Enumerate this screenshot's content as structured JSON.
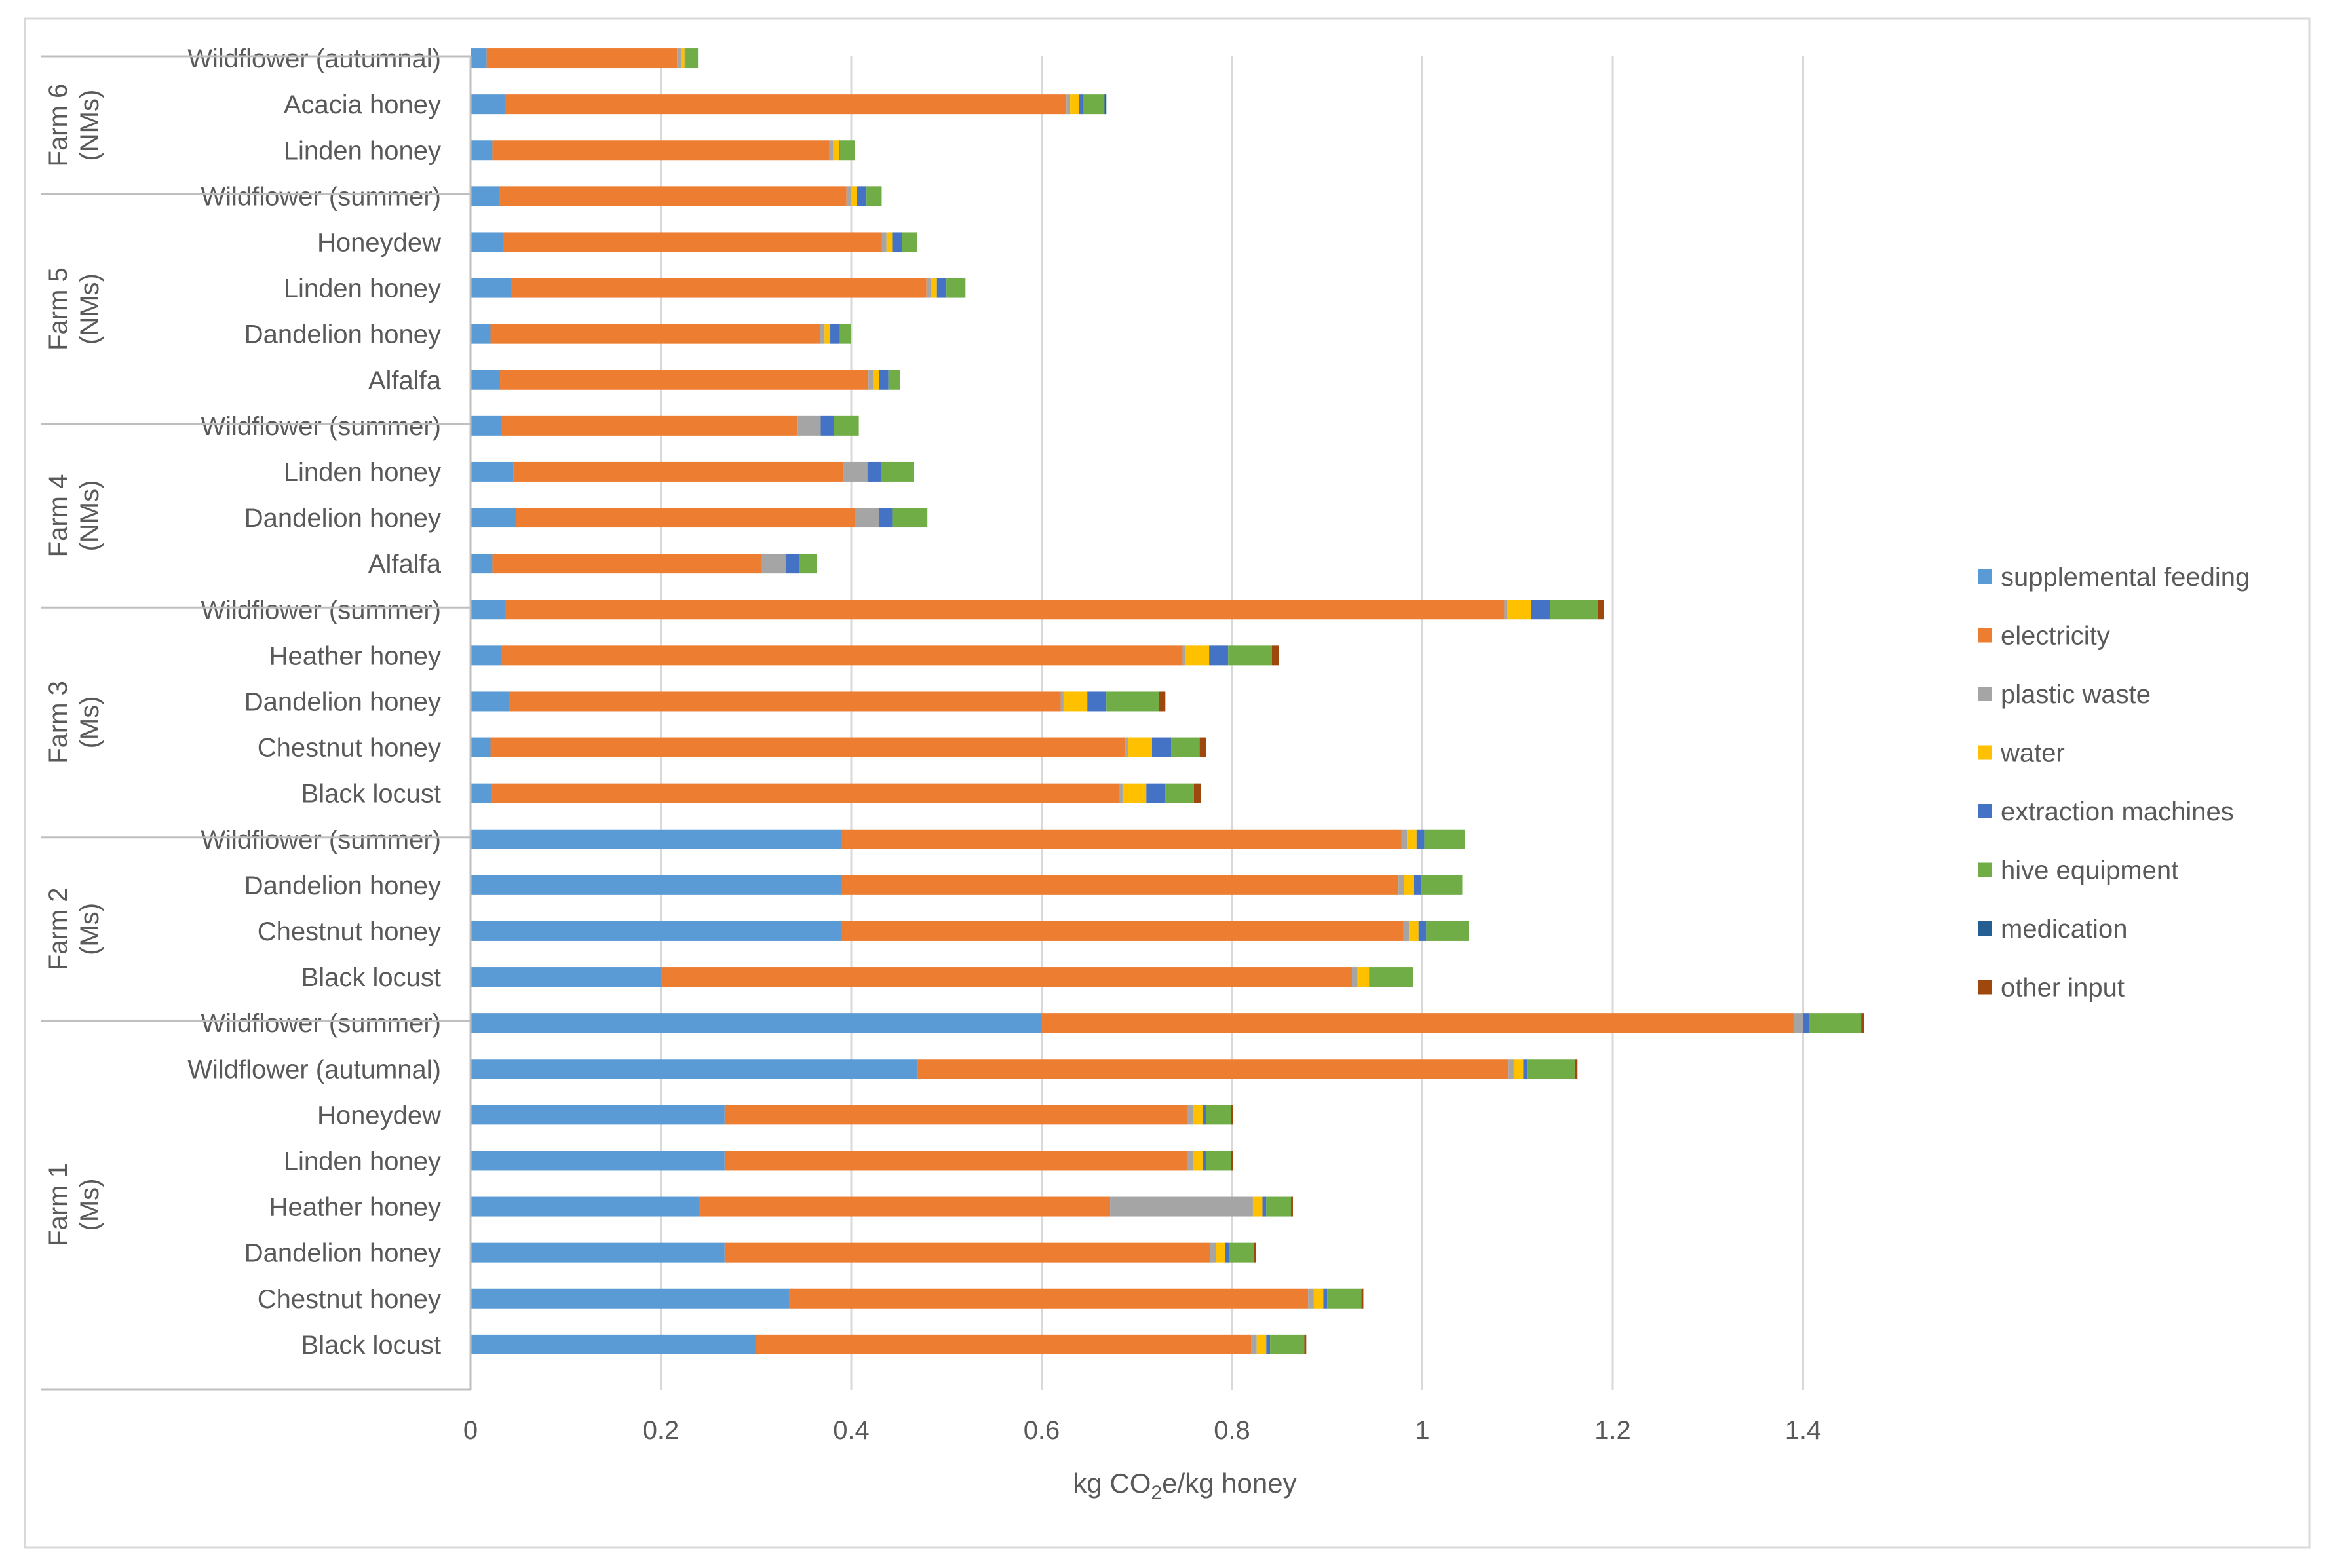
{
  "chart_data": {
    "type": "bar",
    "orientation": "horizontal",
    "stacked": true,
    "xlabel_parts": [
      "kg CO",
      "2",
      "e/kg honey"
    ],
    "xlim": [
      0,
      1.4
    ],
    "xticks": [
      "0",
      "0.2",
      "0.4",
      "0.6",
      "0.8",
      "1",
      "1.2",
      "1.4"
    ],
    "grid": "vertical",
    "legend_position": "right",
    "series": [
      {
        "name": "supplemental feeding",
        "color": "#5B9BD5"
      },
      {
        "name": "electricity",
        "color": "#ED7D31"
      },
      {
        "name": "plastic waste",
        "color": "#A5A5A5"
      },
      {
        "name": "water",
        "color": "#FFC000"
      },
      {
        "name": "extraction machines",
        "color": "#4472C4"
      },
      {
        "name": "hive equipment",
        "color": "#70AD47"
      },
      {
        "name": "medication",
        "color": "#255E91"
      },
      {
        "name": "other input",
        "color": "#9E480E"
      }
    ],
    "groups": [
      {
        "label": "Farm 6",
        "sublabel": "(NMs)",
        "rows": [
          {
            "category": "Wildflower (autumnal)",
            "values": [
              0.017,
              0.2,
              0.004,
              0.004,
              0.001,
              0.013,
              0.0,
              0.0
            ]
          },
          {
            "category": "Acacia honey",
            "values": [
              0.036,
              0.59,
              0.004,
              0.009,
              0.005,
              0.022,
              0.002,
              0.0
            ]
          },
          {
            "category": "Linden honey",
            "values": [
              0.023,
              0.354,
              0.004,
              0.006,
              0.001,
              0.016,
              0.0,
              0.0
            ]
          }
        ]
      },
      {
        "label": "Farm 5",
        "sublabel": "(NMs)",
        "rows": [
          {
            "category": "Wildflower (summer)",
            "values": [
              0.03,
              0.365,
              0.005,
              0.006,
              0.01,
              0.016,
              0.0,
              0.0
            ]
          },
          {
            "category": "Honeydew",
            "values": [
              0.034,
              0.398,
              0.005,
              0.006,
              0.01,
              0.016,
              0.0,
              0.0
            ]
          },
          {
            "category": "Linden honey",
            "values": [
              0.043,
              0.436,
              0.005,
              0.006,
              0.01,
              0.02,
              0.0,
              0.0
            ]
          },
          {
            "category": "Dandelion honey",
            "values": [
              0.021,
              0.346,
              0.005,
              0.006,
              0.01,
              0.012,
              0.0,
              0.0
            ]
          },
          {
            "category": "Alfalfa",
            "values": [
              0.031,
              0.387,
              0.005,
              0.006,
              0.01,
              0.012,
              0.0,
              0.0
            ]
          }
        ]
      },
      {
        "label": "Farm 4",
        "sublabel": "(NMs)",
        "rows": [
          {
            "category": "Wildflower (summer)",
            "values": [
              0.033,
              0.31,
              0.025,
              0.0,
              0.014,
              0.026,
              0.0,
              0.0
            ]
          },
          {
            "category": "Linden honey",
            "values": [
              0.045,
              0.347,
              0.025,
              0.0,
              0.014,
              0.035,
              0.0,
              0.0
            ]
          },
          {
            "category": "Dandelion honey",
            "values": [
              0.048,
              0.356,
              0.025,
              0.0,
              0.014,
              0.037,
              0.0,
              0.0
            ]
          },
          {
            "category": "Alfalfa",
            "values": [
              0.023,
              0.283,
              0.025,
              0.0,
              0.014,
              0.019,
              0.0,
              0.0
            ]
          }
        ]
      },
      {
        "label": "Farm 3",
        "sublabel": "(Ms)",
        "rows": [
          {
            "category": "Wildflower (summer)",
            "values": [
              0.036,
              1.05,
              0.003,
              0.025,
              0.02,
              0.05,
              0.0,
              0.007
            ]
          },
          {
            "category": "Heather honey",
            "values": [
              0.033,
              0.715,
              0.003,
              0.025,
              0.02,
              0.046,
              0.0,
              0.007
            ]
          },
          {
            "category": "Dandelion honey",
            "values": [
              0.04,
              0.58,
              0.003,
              0.025,
              0.02,
              0.055,
              0.0,
              0.007
            ]
          },
          {
            "category": "Chestnut honey",
            "values": [
              0.021,
              0.667,
              0.003,
              0.025,
              0.02,
              0.03,
              0.0,
              0.007
            ]
          },
          {
            "category": "Black locust",
            "values": [
              0.022,
              0.66,
              0.003,
              0.025,
              0.02,
              0.03,
              0.0,
              0.007
            ]
          }
        ]
      },
      {
        "label": "Farm 2",
        "sublabel": "(Ms)",
        "rows": [
          {
            "category": "Wildflower (summer)",
            "values": [
              0.39,
              0.588,
              0.006,
              0.01,
              0.008,
              0.043,
              0.0,
              0.0
            ]
          },
          {
            "category": "Dandelion honey",
            "values": [
              0.39,
              0.585,
              0.006,
              0.01,
              0.008,
              0.043,
              0.0,
              0.0
            ]
          },
          {
            "category": "Chestnut honey",
            "values": [
              0.39,
              0.59,
              0.006,
              0.01,
              0.008,
              0.045,
              0.0,
              0.0
            ]
          },
          {
            "category": "Black locust",
            "values": [
              0.2,
              0.726,
              0.006,
              0.012,
              0.0,
              0.046,
              0.0,
              0.0
            ]
          }
        ]
      },
      {
        "label": "Farm 1",
        "sublabel": "(Ms)",
        "rows": [
          {
            "category": "Wildflower (summer)",
            "values": [
              0.6,
              0.79,
              0.01,
              0.0,
              0.006,
              0.055,
              0.0,
              0.003
            ]
          },
          {
            "category": "Wildflower (autumnal)",
            "values": [
              0.47,
              0.62,
              0.006,
              0.01,
              0.004,
              0.05,
              0.0,
              0.003
            ]
          },
          {
            "category": "Honeydew",
            "values": [
              0.267,
              0.486,
              0.006,
              0.01,
              0.004,
              0.026,
              0.0,
              0.002
            ]
          },
          {
            "category": "Linden honey",
            "values": [
              0.267,
              0.486,
              0.006,
              0.01,
              0.004,
              0.026,
              0.0,
              0.002
            ]
          },
          {
            "category": "Heather honey",
            "values": [
              0.24,
              0.432,
              0.15,
              0.01,
              0.004,
              0.026,
              0.0,
              0.002
            ]
          },
          {
            "category": "Dandelion honey",
            "values": [
              0.267,
              0.51,
              0.006,
              0.01,
              0.004,
              0.026,
              0.0,
              0.002
            ]
          },
          {
            "category": "Chestnut honey",
            "values": [
              0.335,
              0.545,
              0.006,
              0.01,
              0.004,
              0.036,
              0.0,
              0.002
            ]
          },
          {
            "category": "Black locust",
            "values": [
              0.3,
              0.52,
              0.006,
              0.01,
              0.004,
              0.036,
              0.0,
              0.002
            ]
          }
        ]
      }
    ]
  }
}
